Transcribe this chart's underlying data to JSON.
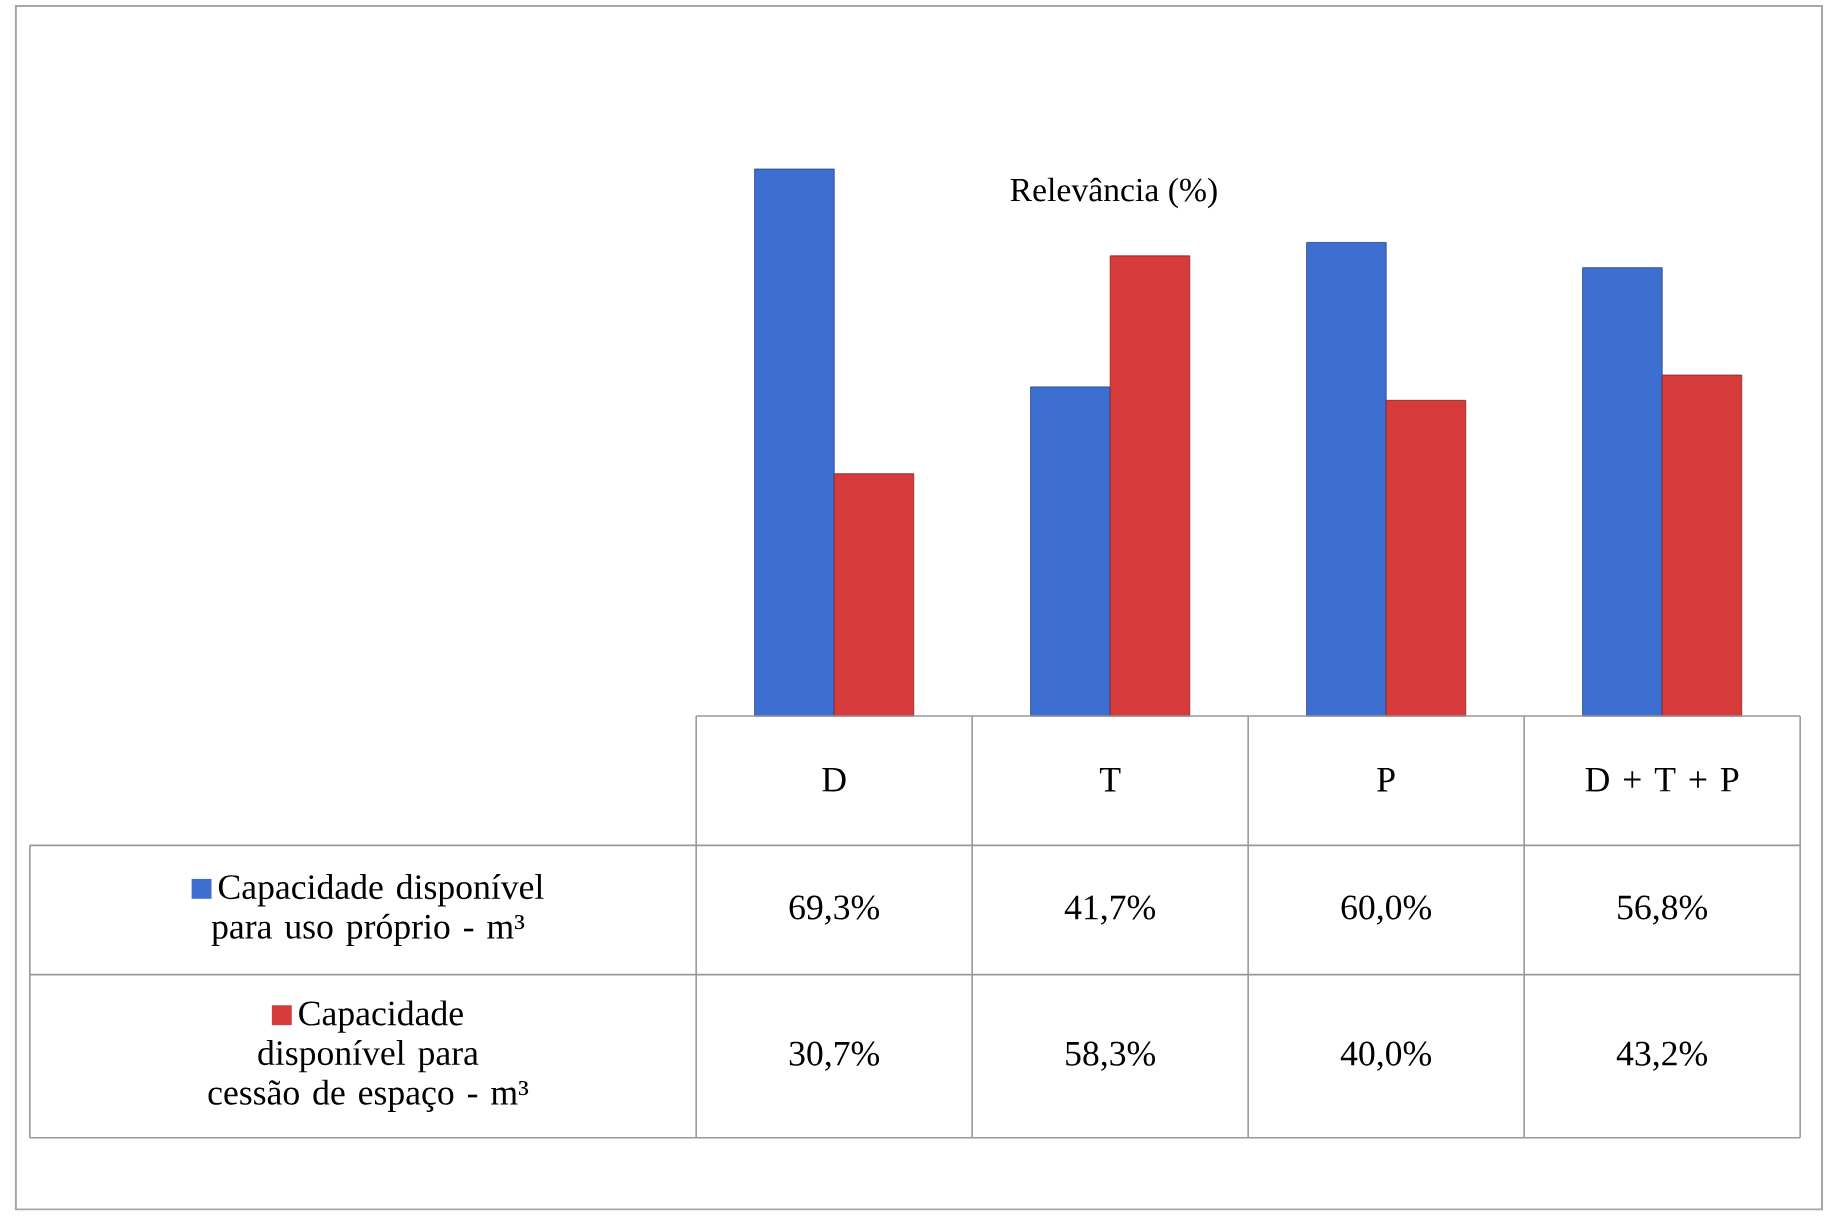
{
  "chart_data": {
    "type": "bar",
    "legend": "left",
    "title": "Relevância (%)",
    "categories": [
      "D",
      "T",
      "P",
      "D + T + P"
    ],
    "series": [
      {
        "name": "Capacidade disponível para uso próprio - m³",
        "color": "#3d6fd1",
        "values": [
          69.3,
          41.7,
          60.0,
          56.8
        ],
        "value_labels": [
          "69,3%",
          "41,7%",
          "60,0%",
          "56,8%"
        ]
      },
      {
        "name": "Capacidade disponível para cessão de espaço - m³",
        "color": "#d63a3a",
        "values": [
          30.7,
          58.3,
          40.0,
          43.2
        ],
        "value_labels": [
          "30,7%",
          "58,3%",
          "40,0%",
          "43,2%"
        ]
      }
    ]
  }
}
